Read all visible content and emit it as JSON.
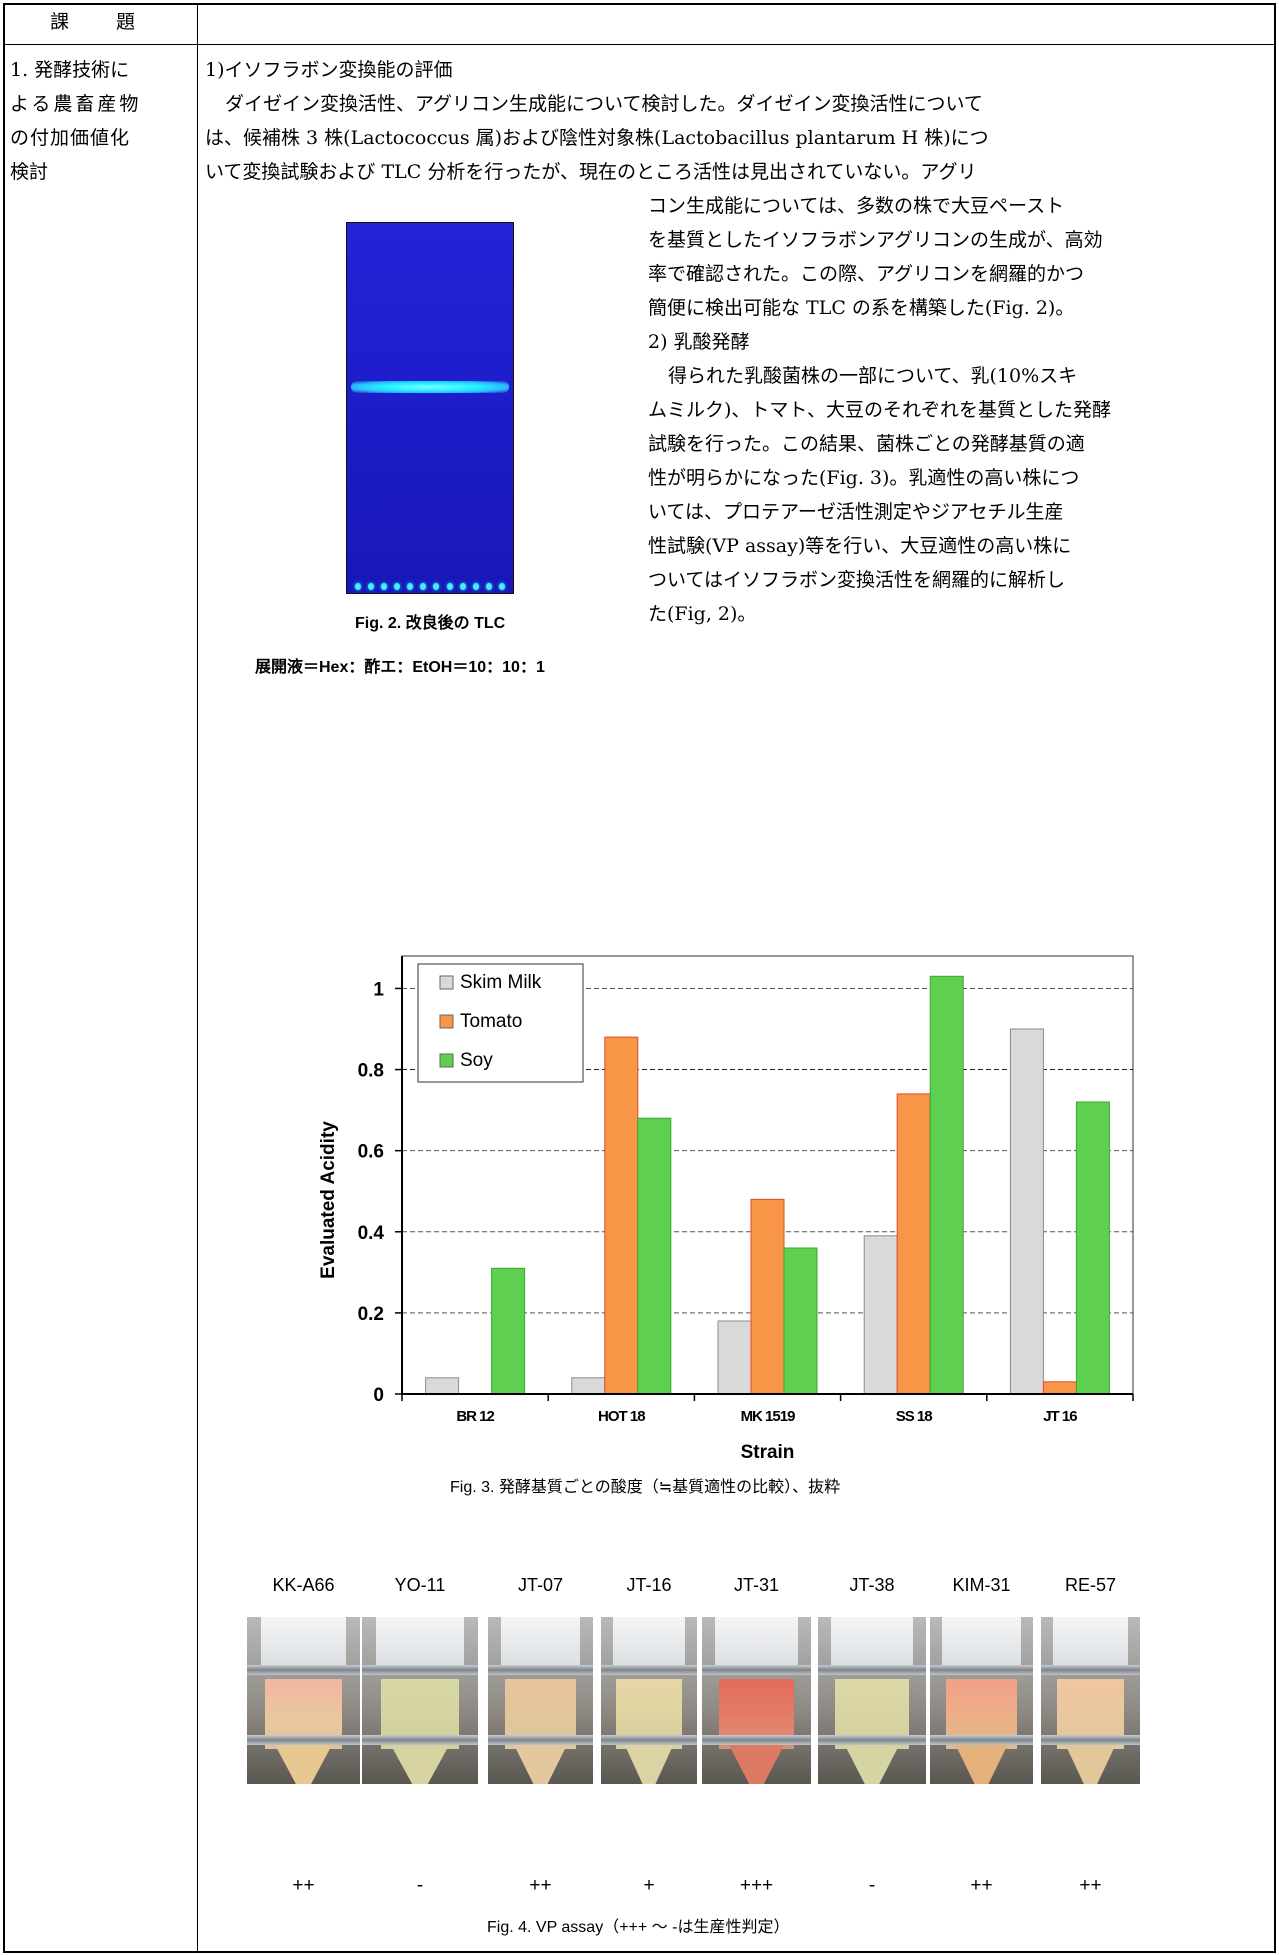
{
  "table": {
    "header_left": "課　題",
    "left_cell": [
      "1. 発酵技術に",
      "よる農畜産物",
      "の付加価値化",
      "検討"
    ]
  },
  "section1": {
    "heading": "1)イソフラボン変換能の評価",
    "para_lines": [
      "ダイゼイン変換活性、アグリコン生成能について検討した。ダイゼイン変換活性について",
      "は、候補株 3 株(Lactococcus 属)および陰性対象株(Lactobacillus plantarum H 株)につ",
      "いて変換試験および TLC 分析を行ったが、現在のところ活性は見出されていない。アグリ"
    ],
    "right_lines": [
      "コン生成能については、多数の株で大豆ペースト",
      "を基質としたイソフラボンアグリコンの生成が、高効",
      "率で確認された。この際、アグリコンを網羅的かつ",
      "簡便に検出可能な TLC の系を構築した(Fig. 2)。",
      "2) 乳酸発酵",
      "得られた乳酸菌株の一部について、乳(10%スキ",
      "ムミルク)、トマト、大豆のそれぞれを基質とした発酵",
      "試験を行った。この結果、菌株ごとの発酵基質の適",
      "性が明らかになった(Fig. 3)。乳適性の高い株につ",
      "いては、プロテアーゼ活性測定やジアセチル生産",
      "性試験(VP assay)等を行い、大豆適性の高い株に",
      "ついてはイソフラボン変換活性を網羅的に解析し",
      "た(Fig, 2)。"
    ],
    "fig2_caption": "Fig. 2. 改良後の TLC",
    "fig2_solvent": "展開液＝Hex：酢エ：EtOH＝10：10：1"
  },
  "fig3_caption": "Fig. 3. 発酵基質ごとの酸度（≒基質適性の比較）、抜粋",
  "chart_data": {
    "type": "bar",
    "categories": [
      "BR 12",
      "HOT 18",
      "MK 1519",
      "SS 18",
      "JT 16"
    ],
    "series": [
      {
        "name": "Skim Milk",
        "values": [
          0.04,
          0.04,
          0.18,
          0.39,
          0.9
        ],
        "color": "#d9d9d9"
      },
      {
        "name": "Tomato",
        "values": [
          0,
          0.88,
          0.48,
          0.74,
          0.03
        ],
        "color": "#f79646"
      },
      {
        "name": "Soy",
        "values": [
          0.31,
          0.68,
          0.36,
          1.03,
          0.72
        ],
        "color": "#5fcf4f"
      }
    ],
    "xlabel": "Strain",
    "ylabel": "Evaluated Acidity",
    "yticks": [
      "0",
      "0.2",
      "0.4",
      "0.6",
      "0.8",
      "1"
    ],
    "ylim": [
      0,
      1.08
    ],
    "grid": true,
    "legend": "top-left"
  },
  "fig4": {
    "labels": [
      "KK-A66",
      "YO-11",
      "JT-07",
      "JT-16",
      "JT-31",
      "JT-38",
      "KIM-31",
      "RE-57"
    ],
    "marks": [
      "++",
      "-",
      "++",
      "+",
      "+++",
      "-",
      "++",
      "++"
    ],
    "caption": "Fig. 4. VP assay（+++ 〜 -は生産性判定）"
  }
}
